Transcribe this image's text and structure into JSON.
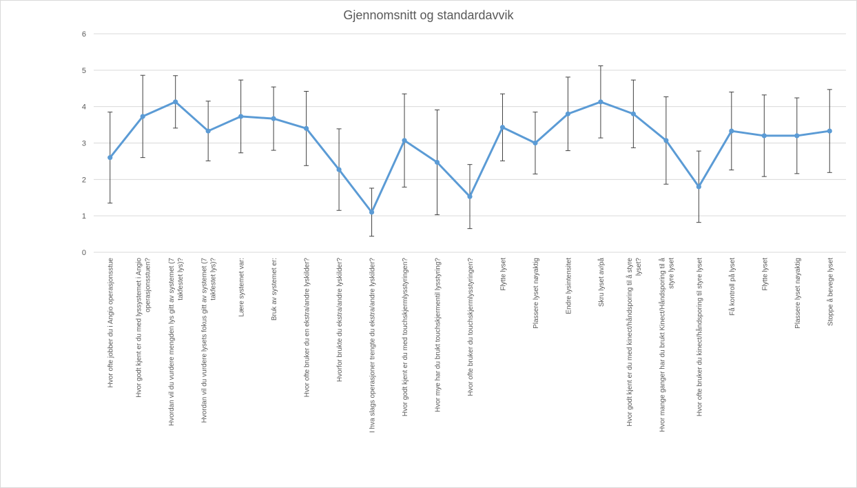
{
  "chart_data": {
    "type": "line",
    "title": "Gjennomsnitt og standardavvik",
    "xlabel": "",
    "ylabel": "",
    "ylim": [
      0,
      6
    ],
    "yticks": [
      0,
      1,
      2,
      3,
      4,
      5,
      6
    ],
    "grid": true,
    "legend": "none",
    "line_color": "#5b9bd5",
    "error_bar_color": "#404040",
    "categories": [
      "Hvor ofte jobber du i Angio operasjonsstue",
      "Hvor godt kjent er du med lyssystemet i Angio operasjonsstuen?",
      "Hvordan vil du vurdere mengden lys gitt av systemet (7 takfestet lys)?",
      "Hvordan vil du vurdere lysets fokus gitt av systemet (7 takfestet lys)?",
      "Lære systemet var:",
      "Bruk av systemet er:",
      "Hvor ofte bruker du en ekstra/andre lyskilder?",
      "Hvorfor brukte du ekstra/andre lyskilder?",
      "I hva slags operasjoner trengte du ekstra/andre lyskilder?",
      "Hvor godt kjent er du med touchskjermlysstyringen?",
      "Hvor mye har du brukt touchskjermentil lysstyring?",
      "Hvor ofte bruker du touchskjermlysstyringen?",
      "Flytte lyset",
      "Plassere lyset nøyaktig",
      "Endre lysintensitet",
      "Skru lyset av/på",
      "Hvor godt kjent er du med kinect/håndsporing til å styre lyset?",
      "Hvor mange ganger har du brukt Kinect/Håndsporing til å styre lyset",
      "Hvor ofte bruker du kinect/håndsporing til styre lyset",
      "Få kontroll på lyset",
      "Flytte lyset",
      "Plassere lyset nøyaktig",
      "Stoppe å bevege lyset"
    ],
    "series": [
      {
        "values": [
          2.6,
          3.73,
          4.13,
          3.33,
          3.73,
          3.67,
          3.4,
          2.27,
          1.1,
          3.07,
          2.47,
          1.53,
          3.43,
          3.0,
          3.8,
          4.13,
          3.8,
          3.07,
          1.8,
          3.33,
          3.2,
          3.2,
          3.33
        ],
        "error": [
          1.25,
          1.13,
          0.72,
          0.82,
          1.0,
          0.87,
          1.02,
          1.12,
          0.66,
          1.28,
          1.44,
          0.88,
          0.92,
          0.85,
          1.01,
          0.99,
          0.93,
          1.2,
          0.98,
          1.07,
          1.12,
          1.04,
          1.14
        ]
      }
    ]
  }
}
